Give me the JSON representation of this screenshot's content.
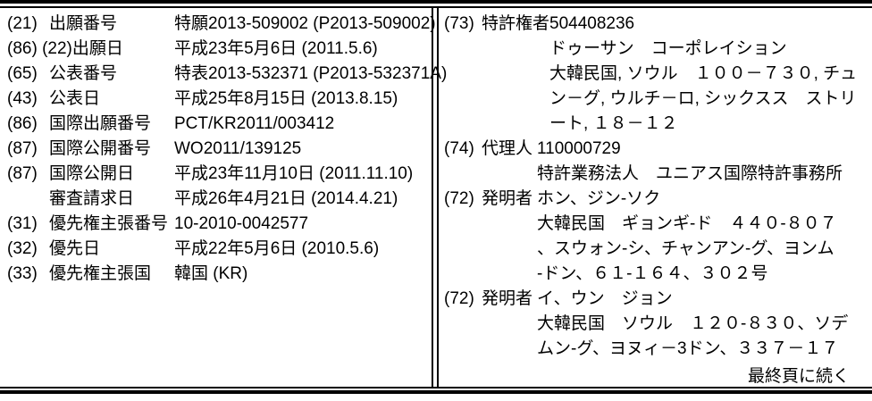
{
  "left_column": {
    "rows": [
      {
        "code": "(21)",
        "label": "出願番号",
        "value": "特願2013-509002 (P2013-509002)"
      },
      {
        "code": "(86) (22)",
        "label": "出願日",
        "value": "平成23年5月6日 (2011.5.6)"
      },
      {
        "code": "(65)",
        "label": "公表番号",
        "value": "特表2013-532371 (P2013-532371A)"
      },
      {
        "code": "(43)",
        "label": "公表日",
        "value": "平成25年8月15日 (2013.8.15)"
      },
      {
        "code": "(86)",
        "label": "国際出願番号",
        "value": "PCT/KR2011/003412"
      },
      {
        "code": "(87)",
        "label": "国際公開番号",
        "value": "WO2011/139125"
      },
      {
        "code": "(87)",
        "label": "国際公開日",
        "value": "平成23年11月10日 (2011.11.10)"
      },
      {
        "code": "",
        "label": "審査請求日",
        "value": "平成26年4月21日 (2014.4.21)"
      },
      {
        "code": "(31)",
        "label": "優先権主張番号",
        "value": "10-2010-0042577"
      },
      {
        "code": "(32)",
        "label": "優先日",
        "value": "平成22年5月6日 (2010.5.6)"
      },
      {
        "code": "(33)",
        "label": "優先権主張国",
        "value": "韓国 (KR)"
      }
    ]
  },
  "right_column": {
    "rows": [
      {
        "code": "(73)",
        "label": "特許権者",
        "value": "504408236\nドゥーサン　コーポレイション\n大韓民国, ソウル　１００－７３０, チュ\nン－グ, ウルチ－ロ, シックスス　ストリ\nート, １８－１２"
      },
      {
        "code": "(74)",
        "label": "代理人",
        "value": "110000729\n特許業務法人　ユニアス国際特許事務所"
      },
      {
        "code": "(72)",
        "label": "発明者",
        "value": "ホン、ジン-ソク\n大韓民国　ギョンギ-ド　４４０-８０７\n、スウォン-シ、チャンアン-グ、ヨンム\n-ドン、６１-１６４、３０２号"
      },
      {
        "code": "(72)",
        "label": "発明者",
        "value": "イ、ウン　ジョン\n大韓民国　ソウル　１２０-８３０、ソデ\nムン-グ、ヨヌィ－3ドン、３３７－１７"
      }
    ],
    "footer": "最終頁に続く"
  },
  "colors": {
    "ink": "#000000",
    "paper": "#ffffff"
  }
}
